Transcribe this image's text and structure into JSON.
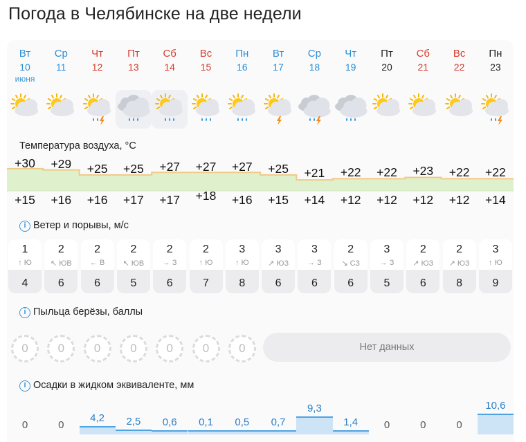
{
  "page": {
    "title": "Погода в Челябинске на две недели"
  },
  "month_label": "июня",
  "days": [
    {
      "dow": "Вт",
      "day": "10",
      "color": "blue",
      "icon": "sun-cloud-icon",
      "fog": false
    },
    {
      "dow": "Ср",
      "day": "11",
      "color": "blue",
      "icon": "sun-cloud-icon",
      "fog": false
    },
    {
      "dow": "Чт",
      "day": "12",
      "color": "red",
      "icon": "sun-cloud-rain-thunder-icon",
      "fog": false
    },
    {
      "dow": "Пт",
      "day": "13",
      "color": "red",
      "icon": "cloud-rain-icon",
      "fog": true
    },
    {
      "dow": "Сб",
      "day": "14",
      "color": "red",
      "icon": "sun-cloud-rain-icon",
      "fog": true
    },
    {
      "dow": "Вс",
      "day": "15",
      "color": "red",
      "icon": "sun-cloud-rain-icon",
      "fog": false
    },
    {
      "dow": "Пн",
      "day": "16",
      "color": "blue",
      "icon": "sun-cloud-rain-icon",
      "fog": false
    },
    {
      "dow": "Вт",
      "day": "17",
      "color": "blue",
      "icon": "sun-cloud-thunder-icon",
      "fog": false
    },
    {
      "dow": "Ср",
      "day": "18",
      "color": "blue",
      "icon": "cloud-rain-thunder-icon",
      "fog": false
    },
    {
      "dow": "Чт",
      "day": "19",
      "color": "blue",
      "icon": "cloud-rain-icon",
      "fog": false
    },
    {
      "dow": "Пт",
      "day": "20",
      "color": "black",
      "icon": "sun-cloud-icon",
      "fog": false
    },
    {
      "dow": "Сб",
      "day": "21",
      "color": "red",
      "icon": "sun-cloud-icon",
      "fog": false
    },
    {
      "dow": "Вс",
      "day": "22",
      "color": "red",
      "icon": "sun-cloud-icon",
      "fog": false
    },
    {
      "dow": "Пн",
      "day": "23",
      "color": "black",
      "icon": "sun-cloud-rain-thunder-icon",
      "fog": false
    }
  ],
  "temperature": {
    "label": "Температура воздуха, °C",
    "max": [
      "+30",
      "+29",
      "+25",
      "+25",
      "+27",
      "+27",
      "+27",
      "+25",
      "+21",
      "+22",
      "+22",
      "+23",
      "+22",
      "+22"
    ],
    "min": [
      "+15",
      "+16",
      "+16",
      "+17",
      "+17",
      "+18",
      "+16",
      "+15",
      "+14",
      "+12",
      "+12",
      "+12",
      "+12",
      "+14"
    ],
    "max_values": [
      30,
      29,
      25,
      25,
      27,
      27,
      27,
      25,
      21,
      22,
      22,
      23,
      22,
      22
    ],
    "hot_color": "#f0c987",
    "mild_color": "#c9e7a5"
  },
  "wind": {
    "label": "Ветер и порывы, м/с",
    "info_icon": "info-icon",
    "speed": [
      "1",
      "2",
      "2",
      "2",
      "2",
      "2",
      "3",
      "3",
      "3",
      "2",
      "3",
      "2",
      "2",
      "3"
    ],
    "dir_arrow": [
      "↑",
      "↖",
      "←",
      "↖",
      "→",
      "↑",
      "↑",
      "↗",
      "→",
      "↘",
      "→",
      "↗",
      "↗",
      "↑"
    ],
    "dir": [
      "Ю",
      "ЮВ",
      "В",
      "ЮВ",
      "З",
      "Ю",
      "Ю",
      "ЮЗ",
      "З",
      "СЗ",
      "З",
      "ЮЗ",
      "ЮЗ",
      "Ю"
    ],
    "gust": [
      "4",
      "6",
      "6",
      "5",
      "6",
      "7",
      "8",
      "6",
      "6",
      "6",
      "5",
      "6",
      "8",
      "9"
    ]
  },
  "pollen": {
    "label": "Пыльца берёзы, баллы",
    "values": [
      "0",
      "0",
      "0",
      "0",
      "0",
      "0",
      "0"
    ],
    "no_data": "Нет данных"
  },
  "precipitation": {
    "label": "Осадки в жидком эквиваленте, мм",
    "values": [
      "0",
      "0",
      "4,2",
      "2,5",
      "0,6",
      "0,1",
      "0,5",
      "0,7",
      "9,3",
      "1,4",
      "0",
      "0",
      "0",
      "10,6"
    ],
    "amounts_mm": [
      0,
      0,
      4.2,
      2.5,
      0.6,
      0.1,
      0.5,
      0.7,
      9.3,
      1.4,
      0,
      0,
      0,
      10.6
    ]
  },
  "colors": {
    "weekday": "#2b8fd6",
    "weekend": "#d63b2b",
    "accent": "#3a95d6"
  }
}
